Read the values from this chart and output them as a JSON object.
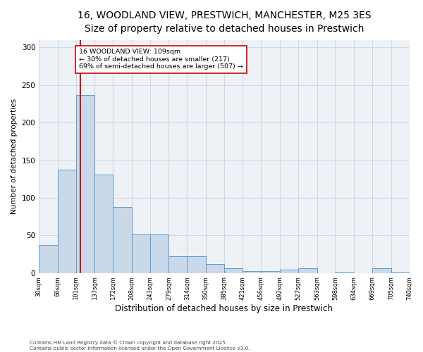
{
  "title_line1": "16, WOODLAND VIEW, PRESTWICH, MANCHESTER, M25 3ES",
  "title_line2": "Size of property relative to detached houses in Prestwich",
  "xlabel": "Distribution of detached houses by size in Prestwich",
  "ylabel": "Number of detached properties",
  "bar_edges": [
    30,
    66,
    101,
    137,
    172,
    208,
    243,
    279,
    314,
    350,
    385,
    421,
    456,
    492,
    527,
    563,
    598,
    634,
    669,
    705,
    740
  ],
  "bar_heights": [
    37,
    137,
    237,
    131,
    88,
    51,
    51,
    22,
    22,
    12,
    6,
    3,
    3,
    4,
    6,
    0,
    1,
    0,
    6,
    1
  ],
  "bar_color": "#c9d9ea",
  "bar_edgecolor": "#5b9bd5",
  "property_size": 109,
  "red_line_color": "#cc0000",
  "annotation_text": "16 WOODLAND VIEW: 109sqm\n← 30% of detached houses are smaller (217)\n69% of semi-detached houses are larger (507) →",
  "annotation_box_color": "#ffffff",
  "annotation_box_edgecolor": "#cc0000",
  "ylim": [
    0,
    310
  ],
  "xlim": [
    30,
    740
  ],
  "yticks": [
    0,
    50,
    100,
    150,
    200,
    250,
    300
  ],
  "grid_color": "#d0d8e4",
  "background_color": "#eef2f7",
  "footer_text": "Contains HM Land Registry data © Crown copyright and database right 2025.\nContains public sector information licensed under the Open Government Licence v3.0.",
  "title_fontsize": 10,
  "tick_labels": [
    "30sqm",
    "66sqm",
    "101sqm",
    "137sqm",
    "172sqm",
    "208sqm",
    "243sqm",
    "279sqm",
    "314sqm",
    "350sqm",
    "385sqm",
    "421sqm",
    "456sqm",
    "492sqm",
    "527sqm",
    "563sqm",
    "598sqm",
    "634sqm",
    "669sqm",
    "705sqm",
    "740sqm"
  ]
}
